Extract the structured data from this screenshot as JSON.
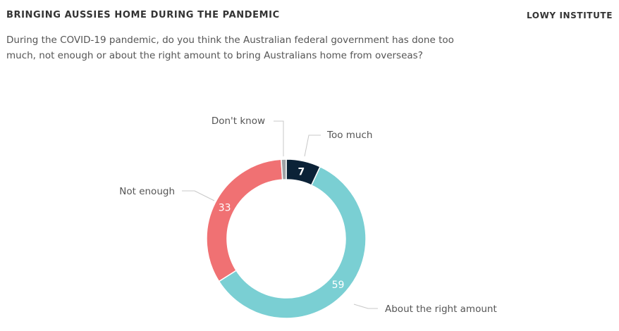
{
  "header": {
    "title": "BRINGING AUSSIES HOME DURING THE PANDEMIC",
    "brand": "LOWY INSTITUTE",
    "subtitle": "During the COVID-19 pandemic, do you think the Australian federal government has done too much, not enough or about the right amount to bring Australians home from overseas?"
  },
  "chart_data": {
    "type": "pie",
    "variant": "donut",
    "slices": [
      {
        "label": "Too much",
        "value": 7,
        "display": "7",
        "color": "#0b2237"
      },
      {
        "label": "About the right amount",
        "value": 59,
        "display": "59",
        "color": "#7acfd3"
      },
      {
        "label": "Not enough",
        "value": 33,
        "display": "33",
        "color": "#f07173"
      },
      {
        "label": "Don't know",
        "value": 1,
        "display": "",
        "color": "#a0a3a6"
      }
    ],
    "start": "top, clockwise",
    "connector_color": "#c8c8c8"
  }
}
